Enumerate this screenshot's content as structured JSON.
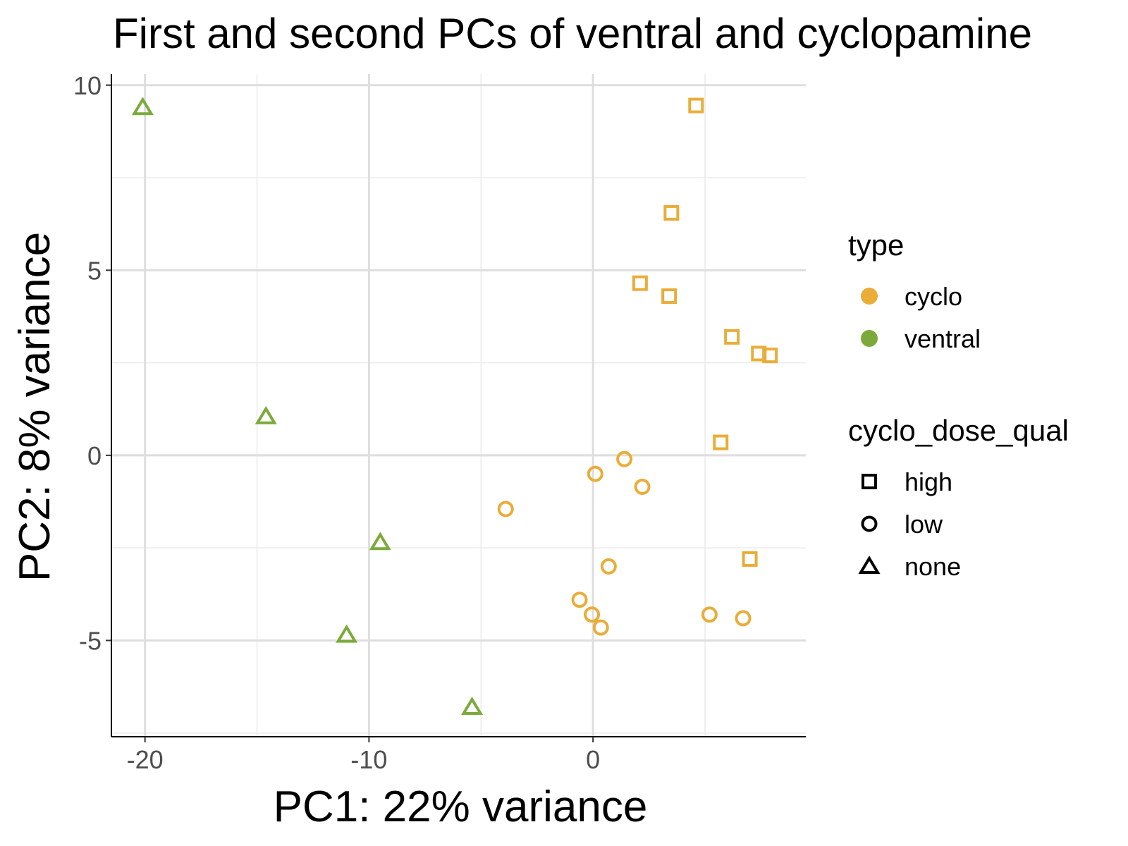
{
  "chart_data": {
    "type": "scatter",
    "title": "First and second PCs of ventral and cyclopamine",
    "xlabel": "PC1: 22% variance",
    "ylabel": "PC2: 8% variance",
    "xlim": [
      -21.5,
      9.5
    ],
    "ylim": [
      -7.6,
      10.3
    ],
    "xticks": [
      -20,
      -10,
      0
    ],
    "xtick_labels": [
      "-20",
      "-10",
      "0"
    ],
    "yticks": [
      -5,
      0,
      5,
      10
    ],
    "ytick_labels": [
      "-5",
      "0",
      "5",
      "10"
    ],
    "x_minor_ticks": [
      -15,
      -5,
      5
    ],
    "y_minor_ticks": [
      -7.5,
      -2.5,
      2.5,
      7.5
    ],
    "grid": true,
    "legend_placement": "right",
    "colors": {
      "cyclo": "#E9AD38",
      "ventral": "#7BAA3A"
    },
    "legends": {
      "color": {
        "title": "type",
        "items": [
          "cyclo",
          "ventral"
        ]
      },
      "shape": {
        "title": "cyclo_dose_qual",
        "items": [
          "high",
          "low",
          "none"
        ]
      }
    },
    "points": [
      {
        "x": -20.1,
        "y": 9.4,
        "type": "ventral",
        "dose": "none"
      },
      {
        "x": -14.6,
        "y": 1.05,
        "type": "ventral",
        "dose": "none"
      },
      {
        "x": -9.5,
        "y": -2.35,
        "type": "ventral",
        "dose": "none"
      },
      {
        "x": -11.0,
        "y": -4.85,
        "type": "ventral",
        "dose": "none"
      },
      {
        "x": -5.4,
        "y": -6.8,
        "type": "ventral",
        "dose": "none"
      },
      {
        "x": 4.6,
        "y": 9.45,
        "type": "cyclo",
        "dose": "high"
      },
      {
        "x": 3.5,
        "y": 6.55,
        "type": "cyclo",
        "dose": "high"
      },
      {
        "x": 2.1,
        "y": 4.65,
        "type": "cyclo",
        "dose": "high"
      },
      {
        "x": 3.4,
        "y": 4.3,
        "type": "cyclo",
        "dose": "high"
      },
      {
        "x": 6.2,
        "y": 3.2,
        "type": "cyclo",
        "dose": "high"
      },
      {
        "x": 7.4,
        "y": 2.75,
        "type": "cyclo",
        "dose": "high"
      },
      {
        "x": 7.9,
        "y": 2.7,
        "type": "cyclo",
        "dose": "high"
      },
      {
        "x": 5.7,
        "y": 0.35,
        "type": "cyclo",
        "dose": "high"
      },
      {
        "x": 7.0,
        "y": -2.8,
        "type": "cyclo",
        "dose": "high"
      },
      {
        "x": 1.4,
        "y": -0.1,
        "type": "cyclo",
        "dose": "low"
      },
      {
        "x": 0.1,
        "y": -0.5,
        "type": "cyclo",
        "dose": "low"
      },
      {
        "x": 2.2,
        "y": -0.85,
        "type": "cyclo",
        "dose": "low"
      },
      {
        "x": -3.9,
        "y": -1.45,
        "type": "cyclo",
        "dose": "low"
      },
      {
        "x": 0.7,
        "y": -3.0,
        "type": "cyclo",
        "dose": "low"
      },
      {
        "x": -0.6,
        "y": -3.9,
        "type": "cyclo",
        "dose": "low"
      },
      {
        "x": -0.05,
        "y": -4.3,
        "type": "cyclo",
        "dose": "low"
      },
      {
        "x": 0.35,
        "y": -4.65,
        "type": "cyclo",
        "dose": "low"
      },
      {
        "x": 5.2,
        "y": -4.3,
        "type": "cyclo",
        "dose": "low"
      },
      {
        "x": 6.7,
        "y": -4.4,
        "type": "cyclo",
        "dose": "low"
      }
    ]
  }
}
